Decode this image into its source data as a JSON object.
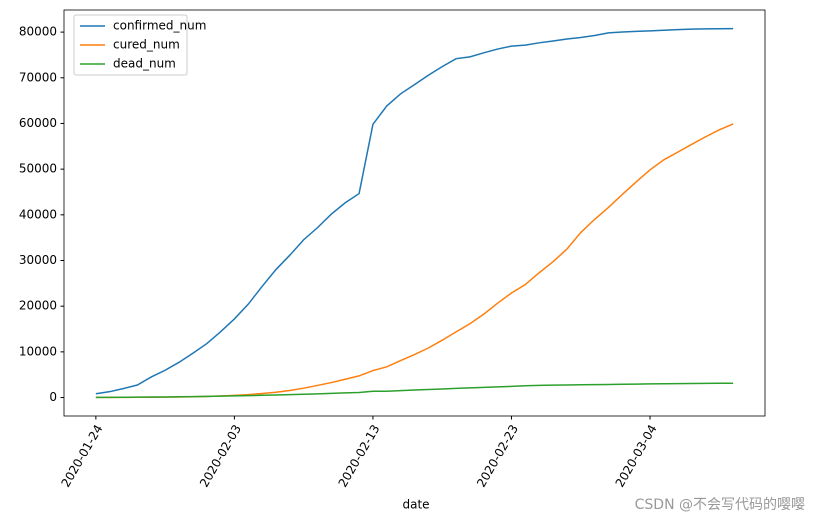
{
  "chart_data": {
    "type": "line",
    "xlabel": "date",
    "x": [
      "2020-01-24",
      "2020-01-25",
      "2020-01-26",
      "2020-01-27",
      "2020-01-28",
      "2020-01-29",
      "2020-01-30",
      "2020-01-31",
      "2020-02-01",
      "2020-02-02",
      "2020-02-03",
      "2020-02-04",
      "2020-02-05",
      "2020-02-06",
      "2020-02-07",
      "2020-02-08",
      "2020-02-09",
      "2020-02-10",
      "2020-02-11",
      "2020-02-12",
      "2020-02-13",
      "2020-02-14",
      "2020-02-15",
      "2020-02-16",
      "2020-02-17",
      "2020-02-18",
      "2020-02-19",
      "2020-02-20",
      "2020-02-21",
      "2020-02-22",
      "2020-02-23",
      "2020-02-24",
      "2020-02-25",
      "2020-02-26",
      "2020-02-27",
      "2020-02-28",
      "2020-02-29",
      "2020-03-01",
      "2020-03-02",
      "2020-03-03",
      "2020-03-04",
      "2020-03-05",
      "2020-03-06",
      "2020-03-07",
      "2020-03-08",
      "2020-03-09",
      "2020-03-10"
    ],
    "series": [
      {
        "name": "confirmed_num",
        "color": "#1f77b4",
        "values": [
          830,
          1287,
          1975,
          2744,
          4515,
          5974,
          7711,
          9692,
          11791,
          14380,
          17205,
          20438,
          24324,
          28018,
          31161,
          34546,
          37198,
          40171,
          42638,
          44653,
          59804,
          63851,
          66492,
          68500,
          70548,
          72436,
          74185,
          74576,
          75465,
          76288,
          76936,
          77150,
          77658,
          78064,
          78497,
          78824,
          79251,
          79824,
          80026,
          80151,
          80270,
          80409,
          80552,
          80651,
          80695,
          80735,
          80754
        ]
      },
      {
        "name": "cured_num",
        "color": "#ff7f0e",
        "values": [
          34,
          38,
          49,
          51,
          60,
          103,
          124,
          171,
          243,
          328,
          475,
          632,
          892,
          1153,
          1540,
          2050,
          2649,
          3281,
          3996,
          4740,
          5911,
          6723,
          8096,
          9419,
          10844,
          12552,
          14376,
          16155,
          18264,
          20659,
          22888,
          24734,
          27323,
          29745,
          32495,
          36117,
          39002,
          41625,
          44462,
          47204,
          49856,
          52045,
          53726,
          55404,
          57065,
          58600,
          59897
        ]
      },
      {
        "name": "dead_num",
        "color": "#2ca02c",
        "values": [
          25,
          41,
          56,
          80,
          106,
          132,
          170,
          213,
          259,
          304,
          361,
          425,
          490,
          563,
          636,
          722,
          811,
          908,
          1016,
          1113,
          1367,
          1380,
          1523,
          1665,
          1770,
          1868,
          2004,
          2118,
          2236,
          2345,
          2442,
          2592,
          2663,
          2715,
          2744,
          2788,
          2835,
          2870,
          2912,
          2943,
          2981,
          3012,
          3042,
          3070,
          3097,
          3119,
          3136
        ]
      }
    ],
    "xlim": [
      "2020-01-21T16:48:00Z",
      "2020-03-12T07:12:00Z"
    ],
    "xticks": [
      "2020-01-24",
      "2020-02-03",
      "2020-02-13",
      "2020-02-23",
      "2020-03-04"
    ],
    "ylim": [
      -4040,
      84840
    ],
    "yticks": [
      0,
      10000,
      20000,
      30000,
      40000,
      50000,
      60000,
      70000,
      80000
    ],
    "grid": false,
    "legend": "upper left"
  },
  "watermark": "CSDN @不会写代码的嘤嘤"
}
